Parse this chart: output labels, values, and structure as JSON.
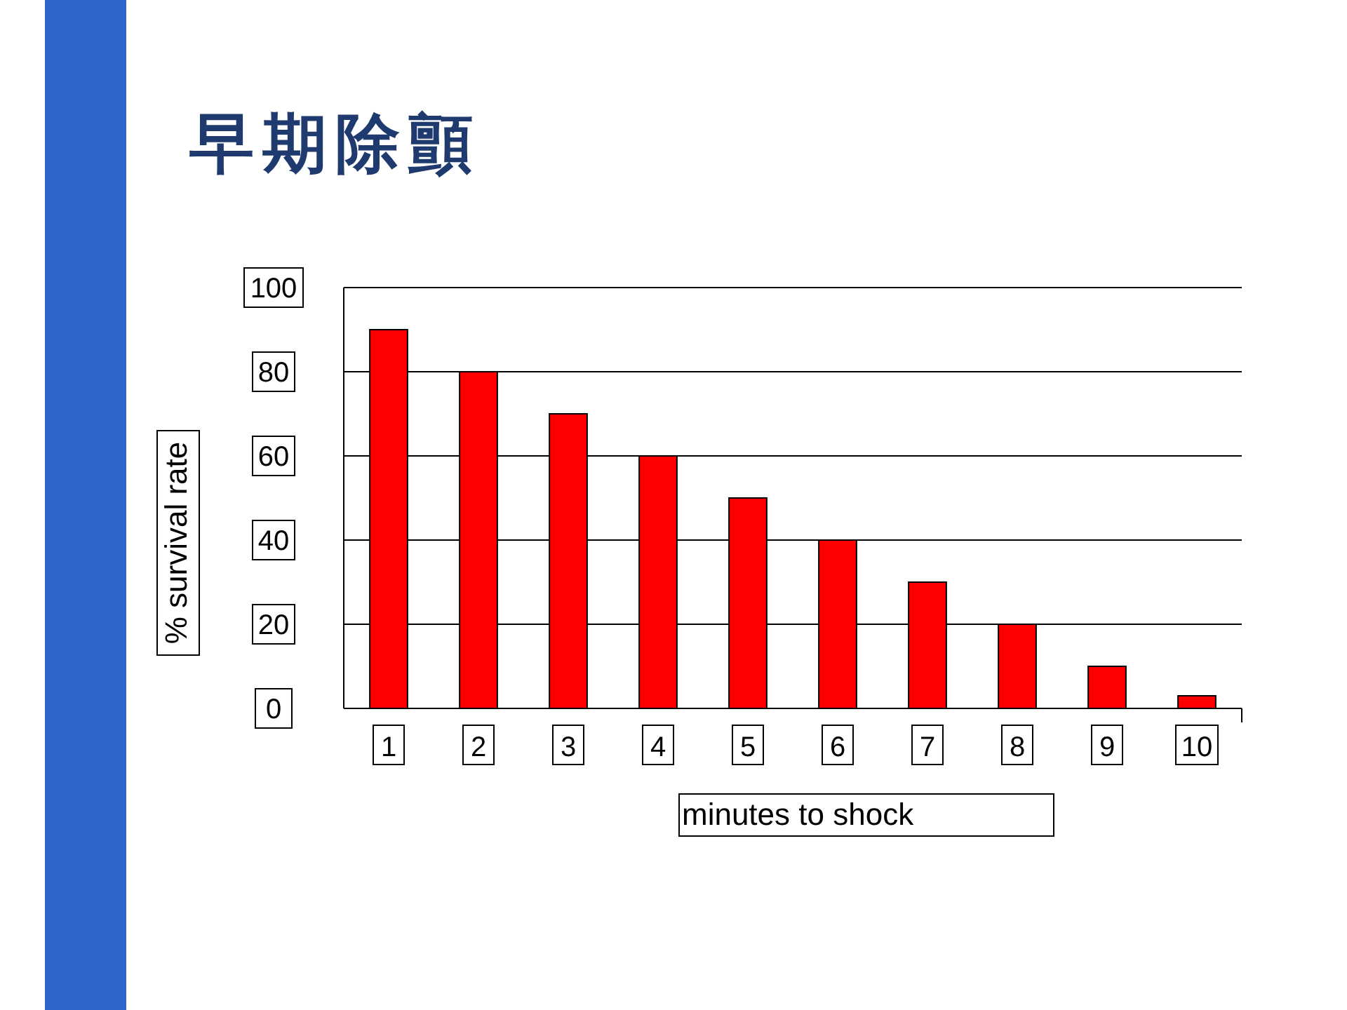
{
  "chart_data": {
    "type": "bar",
    "title": "早期除顫",
    "xlabel": "minutes to shock",
    "ylabel": "% survival rate",
    "categories": [
      "1",
      "2",
      "3",
      "4",
      "5",
      "6",
      "7",
      "8",
      "9",
      "10"
    ],
    "values": [
      90,
      80,
      70,
      60,
      50,
      40,
      30,
      20,
      10,
      3
    ],
    "color": "#ff0000",
    "ylim": [
      0,
      100
    ],
    "yticks": [
      0,
      20,
      40,
      60,
      80,
      100
    ],
    "grid": "y"
  }
}
